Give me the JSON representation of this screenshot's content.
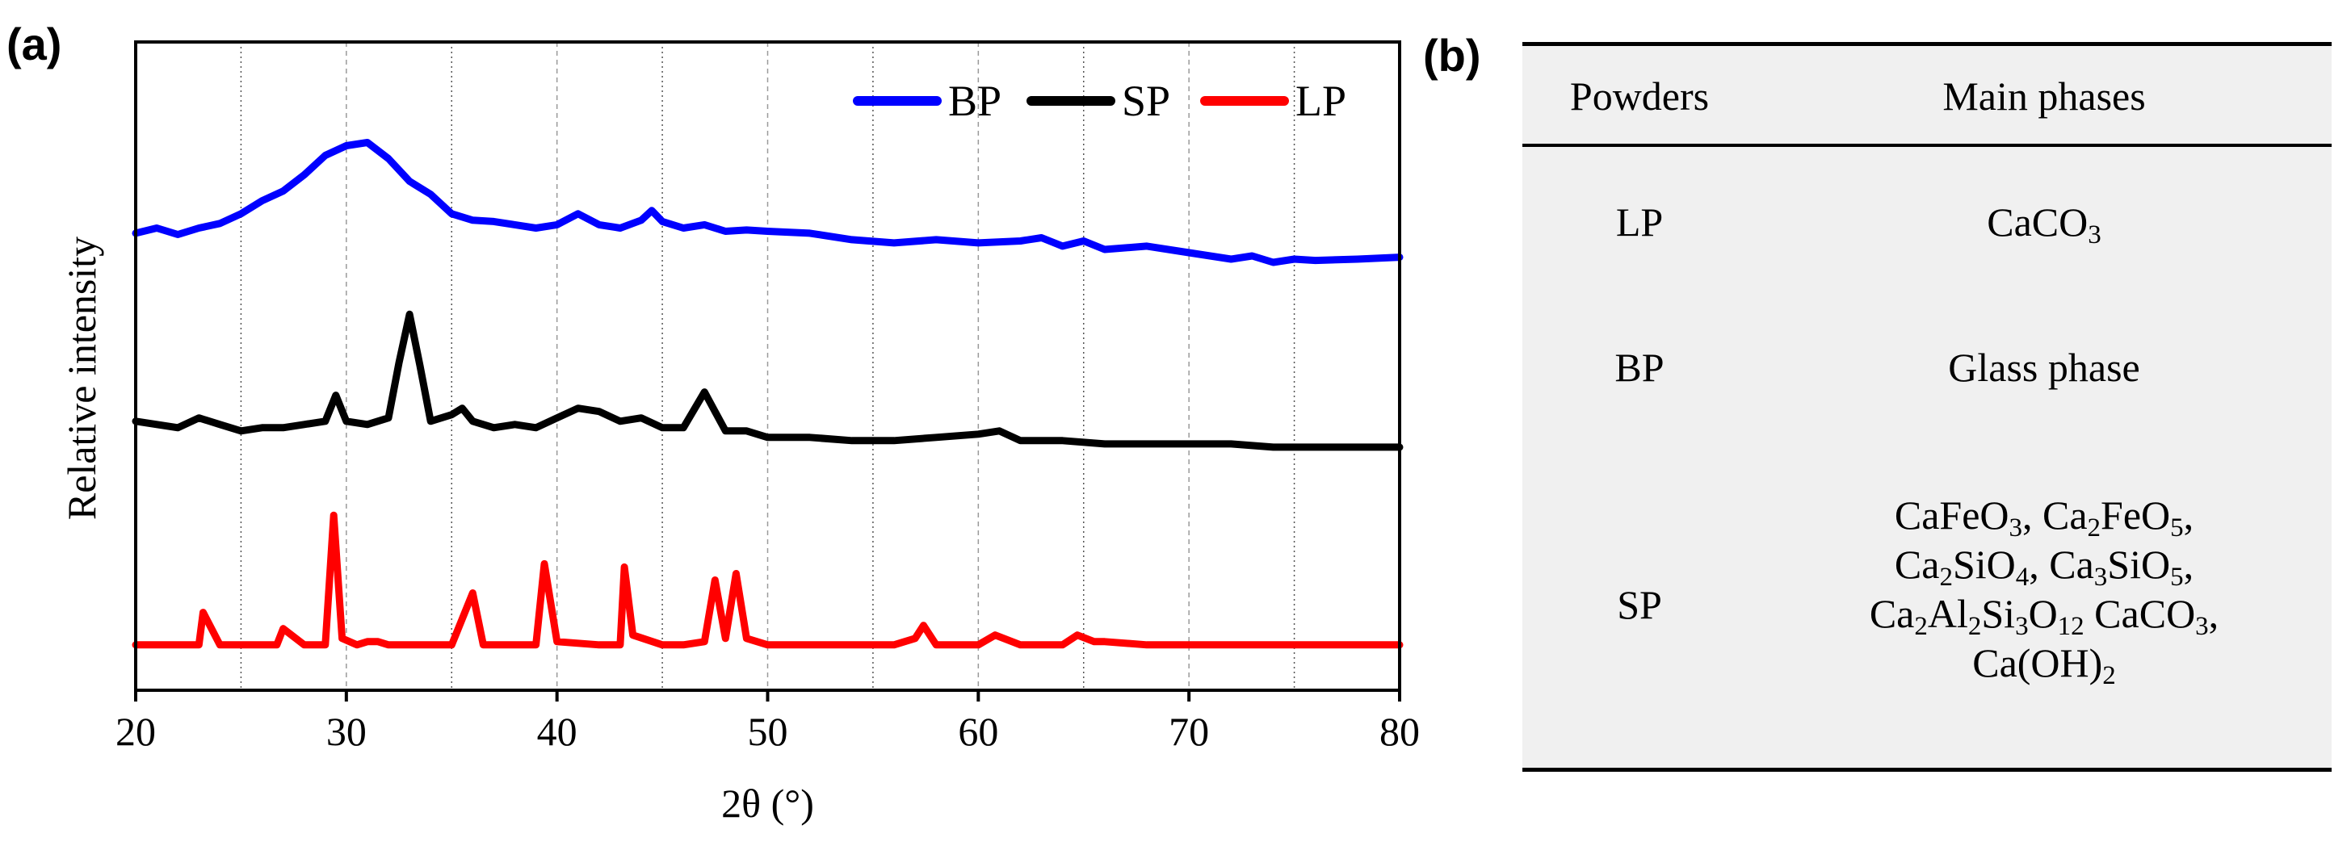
{
  "panel_a": {
    "label": "(a)"
  },
  "panel_b": {
    "label": "(b)"
  },
  "chart_data": {
    "type": "line",
    "title": "",
    "xlabel": "2θ (°)",
    "ylabel": "Relative intensity",
    "xlim": [
      20,
      80
    ],
    "xticks": [
      20,
      30,
      40,
      50,
      60,
      70,
      80
    ],
    "xtick_labels": [
      "20",
      "30",
      "40",
      "50",
      "60",
      "70",
      "80"
    ],
    "minor_gridlines_x": [
      25,
      35,
      45,
      55,
      65,
      75
    ],
    "grid": true,
    "legend_position": "top-right",
    "y_unit": "relative intensity (arbitrary, curves vertically offset; 0–100 scale)",
    "ylim": [
      0,
      100
    ],
    "series": [
      {
        "name": "BP",
        "color": "#0000ff",
        "x": [
          20,
          21,
          22,
          23,
          24,
          25,
          26,
          27,
          28,
          29,
          30,
          31,
          32,
          33,
          34,
          35,
          36,
          37,
          38,
          39,
          40,
          41,
          42,
          43,
          44,
          44.5,
          45,
          46,
          47,
          48,
          49,
          50,
          52,
          54,
          56,
          58,
          60,
          62,
          63,
          64,
          65,
          66,
          68,
          70,
          72,
          73,
          74,
          75,
          76,
          78,
          80
        ],
        "y": [
          70.5,
          71.3,
          70.3,
          71.3,
          72,
          73.5,
          75.5,
          77,
          79.5,
          82.5,
          84,
          84.5,
          82,
          78.5,
          76.5,
          73.5,
          72.5,
          72.3,
          71.8,
          71.3,
          71.8,
          73.5,
          71.8,
          71.3,
          72.5,
          74,
          72.3,
          71.3,
          71.8,
          70.8,
          71,
          70.8,
          70.5,
          69.5,
          69,
          69.5,
          69,
          69.3,
          69.8,
          68.5,
          69.3,
          68,
          68.5,
          67.5,
          66.5,
          67,
          66,
          66.5,
          66.3,
          66.5,
          66.8
        ]
      },
      {
        "name": "SP",
        "color": "#000000",
        "x": [
          20,
          21,
          22,
          23,
          24,
          25,
          26,
          27,
          28,
          29,
          29.5,
          30,
          31,
          32,
          32.5,
          33,
          33.5,
          34,
          35,
          35.5,
          36,
          37,
          38,
          39,
          40,
          41,
          42,
          43,
          44,
          45,
          46,
          47,
          47.5,
          48,
          49,
          50,
          52,
          54,
          56,
          58,
          60,
          61,
          62,
          64,
          66,
          68,
          70,
          72,
          74,
          76,
          78,
          80
        ],
        "y": [
          41.5,
          41,
          40.5,
          42,
          41,
          40,
          40.5,
          40.5,
          41,
          41.5,
          45.5,
          41.5,
          41,
          42,
          50.5,
          58,
          50,
          41.5,
          42.5,
          43.5,
          41.5,
          40.5,
          41,
          40.5,
          42,
          43.5,
          43,
          41.5,
          42,
          40.5,
          40.5,
          46,
          43,
          40,
          40,
          39,
          39,
          38.5,
          38.5,
          39,
          39.5,
          40,
          38.5,
          38.5,
          38,
          38,
          38,
          38,
          37.5,
          37.5,
          37.5,
          37.5
        ]
      },
      {
        "name": "LP",
        "color": "#ff0000",
        "x": [
          20,
          22,
          23,
          23.2,
          24,
          26,
          26.7,
          27,
          28,
          29,
          29.4,
          29.8,
          30.5,
          31,
          31.5,
          32,
          35,
          36,
          36.5,
          38,
          39,
          39.4,
          40,
          42,
          43,
          43.2,
          43.6,
          45,
          46,
          47,
          47.5,
          48,
          48.5,
          49,
          50,
          52,
          54,
          56,
          56.5,
          57,
          57.4,
          58,
          60,
          60.8,
          62,
          64,
          64.7,
          65.5,
          66,
          68,
          70,
          72,
          73,
          74,
          76,
          78,
          80
        ],
        "y": [
          7,
          7,
          7,
          12,
          7,
          7,
          7,
          9.5,
          7,
          7,
          27,
          8,
          7,
          7.5,
          7.5,
          7,
          7,
          15,
          7,
          7,
          7,
          19.5,
          7.5,
          7,
          7,
          19,
          8.5,
          7,
          7,
          7.5,
          17,
          8,
          18,
          8,
          7,
          7,
          7,
          7,
          7.5,
          8,
          10,
          7,
          7,
          8.5,
          7,
          7,
          8.5,
          7.5,
          7.5,
          7,
          7,
          7,
          7,
          7,
          7,
          7,
          7
        ]
      }
    ]
  },
  "table": {
    "headers": [
      "Powders",
      "Main phases"
    ],
    "rows": [
      {
        "powder": "LP",
        "phases": [
          "CaCO3"
        ]
      },
      {
        "powder": "BP",
        "phases": [
          "Glass phase"
        ]
      },
      {
        "powder": "SP",
        "phases": [
          "CaFeO3, Ca2FeO5,",
          "Ca2SiO4, Ca3SiO5,",
          "Ca2Al2Si3O12 CaCO3,",
          "Ca(OH)2"
        ]
      }
    ]
  }
}
